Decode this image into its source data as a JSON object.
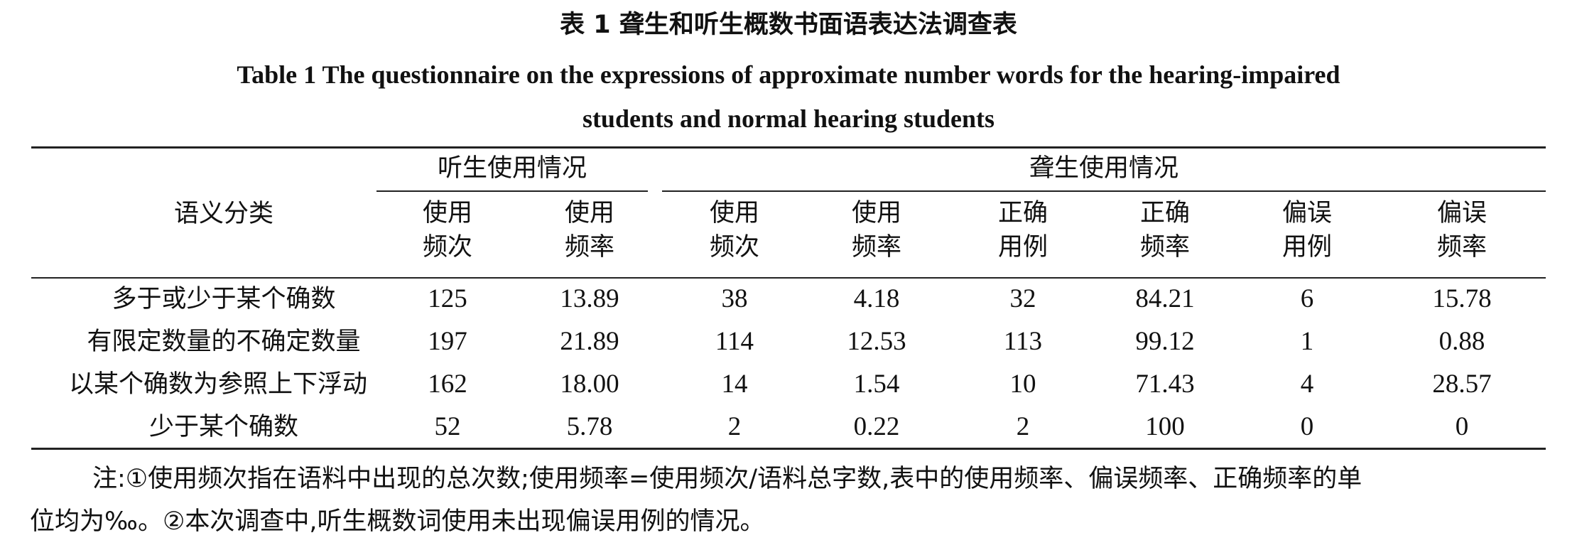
{
  "title_zh": "表 1   聋生和听生概数书面语表达法调查表",
  "title_en_line1": "Table 1   The questionnaire on the expressions of approximate number words for the hearing-impaired",
  "title_en_line2": "students and normal hearing students",
  "header": {
    "row_label": "语义分类",
    "group_hearing": "听生使用情况",
    "group_deaf": "聋生使用情况",
    "columns": [
      [
        "使用",
        "频次"
      ],
      [
        "使用",
        "频率"
      ],
      [
        "使用",
        "频次"
      ],
      [
        "使用",
        "频率"
      ],
      [
        "正确",
        "用例"
      ],
      [
        "正确",
        "频率"
      ],
      [
        "偏误",
        "用例"
      ],
      [
        "偏误",
        "频率"
      ]
    ]
  },
  "rows": [
    {
      "label": "多于或少于某个确数",
      "values": [
        "125",
        "13.89",
        "38",
        "4.18",
        "32",
        "84.21",
        "6",
        "15.78"
      ]
    },
    {
      "label": "有限定数量的不确定数量",
      "values": [
        "197",
        "21.89",
        "114",
        "12.53",
        "113",
        "99.12",
        "1",
        "0.88"
      ]
    },
    {
      "label": "以某个确数为参照上下浮动",
      "values": [
        "162",
        "18.00",
        "14",
        "1.54",
        "10",
        "71.43",
        "4",
        "28.57"
      ]
    },
    {
      "label": "少于某个确数",
      "values": [
        "52",
        "5.78",
        "2",
        "0.22",
        "2",
        "100",
        "0",
        "0"
      ]
    }
  ],
  "note_line1": "注:①使用频次指在语料中出现的总次数;使用频率=使用频次/语料总字数,表中的使用频率、偏误频率、正确频率的单",
  "note_line2": "位均为‰。②本次调查中,听生概数词使用未出现偏误用例的情况。"
}
